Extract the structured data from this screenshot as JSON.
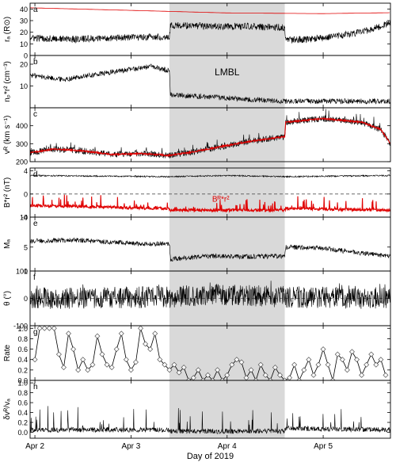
{
  "figure": {
    "xlabel": "Day of 2019",
    "shade_label": "LMBL",
    "x_ticks": [
      "Apr 2",
      "Apr 3",
      "Apr 4",
      "Apr 5"
    ],
    "x_tick_days": [
      2,
      3,
      4,
      5
    ],
    "x_range_days": [
      1.95,
      5.7
    ],
    "shaded_interval_days": [
      3.4,
      4.6
    ],
    "colors": {
      "black": "#000000",
      "red": "#e00000",
      "shade": "#d9d9d9",
      "dashed": "#555555"
    }
  },
  "chart_data": [
    {
      "type": "line",
      "panel_letter": "a",
      "ylabel": "rₐ (R⊙)",
      "ylim": [
        0,
        45
      ],
      "y_ticks": [
        0,
        10,
        20,
        30,
        40
      ],
      "series": [
        {
          "color": "#e00000",
          "points": [
            [
              1.95,
              41.0
            ],
            [
              3.0,
              38.8
            ],
            [
              4.0,
              36.6
            ],
            [
              5.0,
              36.0
            ],
            [
              5.7,
              36.8
            ]
          ]
        },
        {
          "color": "#000000",
          "profile": [
            [
              1.95,
              15
            ],
            [
              2.4,
              14
            ],
            [
              2.8,
              15
            ],
            [
              3.2,
              16
            ],
            [
              3.4,
              16
            ],
            [
              3.41,
              26
            ],
            [
              3.8,
              25
            ],
            [
              4.2,
              25
            ],
            [
              4.6,
              24
            ],
            [
              4.61,
              13
            ],
            [
              5.0,
              15
            ],
            [
              5.4,
              20
            ],
            [
              5.7,
              28
            ]
          ],
          "noise": 3.0,
          "spike": 0
        }
      ]
    },
    {
      "type": "line",
      "panel_letter": "b",
      "ylabel": "nₚ*r² (cm⁻³)",
      "ylim": [
        0,
        24
      ],
      "y_ticks": [
        10,
        20
      ],
      "annotation": "LMBL",
      "series": [
        {
          "color": "#000000",
          "profile": [
            [
              1.95,
              15
            ],
            [
              2.3,
              13
            ],
            [
              2.6,
              15
            ],
            [
              2.9,
              17
            ],
            [
              3.2,
              19
            ],
            [
              3.4,
              17
            ],
            [
              3.41,
              6
            ],
            [
              3.8,
              5
            ],
            [
              4.2,
              4
            ],
            [
              4.6,
              3
            ],
            [
              4.61,
              3
            ],
            [
              5.2,
              3
            ],
            [
              5.7,
              3
            ]
          ],
          "noise": 1.2,
          "spike": 0
        }
      ]
    },
    {
      "type": "line",
      "panel_letter": "c",
      "ylabel": "vᴿ (km s⁻¹)",
      "ylim": [
        200,
        500
      ],
      "y_ticks": [
        200,
        300,
        400
      ],
      "series": [
        {
          "color": "#000000",
          "profile": [
            [
              1.95,
              250
            ],
            [
              2.2,
              270
            ],
            [
              2.5,
              260
            ],
            [
              2.8,
              240
            ],
            [
              3.1,
              245
            ],
            [
              3.4,
              235
            ],
            [
              3.6,
              250
            ],
            [
              3.9,
              280
            ],
            [
              4.2,
              310
            ],
            [
              4.6,
              340
            ],
            [
              4.61,
              420
            ],
            [
              5.0,
              440
            ],
            [
              5.4,
              420
            ],
            [
              5.6,
              380
            ],
            [
              5.7,
              300
            ]
          ],
          "noise": 18,
          "spike": 40
        },
        {
          "color": "#e00000",
          "profile": [
            [
              1.95,
              250
            ],
            [
              2.2,
              270
            ],
            [
              2.5,
              260
            ],
            [
              2.8,
              240
            ],
            [
              3.1,
              245
            ],
            [
              3.4,
              235
            ],
            [
              3.6,
              250
            ],
            [
              3.9,
              280
            ],
            [
              4.2,
              310
            ],
            [
              4.6,
              340
            ],
            [
              4.61,
              420
            ],
            [
              5.0,
              440
            ],
            [
              5.4,
              420
            ],
            [
              5.6,
              380
            ],
            [
              5.7,
              300
            ]
          ],
          "noise": 4,
          "spike": 0
        }
      ]
    },
    {
      "type": "line",
      "panel_letter": "d",
      "ylabel": "B*r² (nT)",
      "ylim": [
        -4,
        4.5
      ],
      "y_ticks": [
        -4,
        0,
        4
      ],
      "dashed_y": 0,
      "annotation": "Bᴿ*r²",
      "series": [
        {
          "color": "#000000",
          "profile": [
            [
              1.95,
              3.2
            ],
            [
              3.4,
              3.0
            ],
            [
              4.0,
              3.2
            ],
            [
              4.6,
              3.0
            ],
            [
              5.7,
              3.2
            ]
          ],
          "noise": 0.12,
          "spike": 0
        },
        {
          "color": "#e00000",
          "profile": [
            [
              1.95,
              -2.0
            ],
            [
              3.4,
              -2.5
            ],
            [
              3.41,
              -2.8
            ],
            [
              4.6,
              -2.8
            ],
            [
              4.61,
              -2.5
            ],
            [
              5.7,
              -2.8
            ]
          ],
          "noise": 0.25,
          "spike": 2.2
        }
      ]
    },
    {
      "type": "line",
      "panel_letter": "e",
      "ylabel": "Mₐ",
      "ylim": [
        1,
        10
      ],
      "y_ticks": [
        1,
        5,
        10
      ],
      "series": [
        {
          "color": "#000000",
          "profile": [
            [
              1.95,
              6.0
            ],
            [
              2.4,
              6.2
            ],
            [
              2.8,
              5.8
            ],
            [
              3.2,
              5.5
            ],
            [
              3.4,
              5.6
            ],
            [
              3.41,
              3.0
            ],
            [
              3.8,
              3.5
            ],
            [
              4.2,
              3.4
            ],
            [
              4.6,
              3.5
            ],
            [
              4.61,
              5.0
            ],
            [
              5.0,
              4.8
            ],
            [
              5.4,
              4.0
            ],
            [
              5.7,
              3.5
            ]
          ],
          "noise": 0.4,
          "spike": 0
        }
      ]
    },
    {
      "type": "line",
      "panel_letter": "f",
      "ylabel": "θ (°)",
      "ylim": [
        -100,
        100
      ],
      "y_ticks": [
        -100,
        0,
        100
      ],
      "dashed_y": 0,
      "series": [
        {
          "color": "#000000",
          "profile": [
            [
              1.95,
              0
            ],
            [
              3.4,
              5
            ],
            [
              4.0,
              15
            ],
            [
              4.6,
              5
            ],
            [
              5.7,
              0
            ]
          ],
          "noise": 40,
          "spike": 25
        }
      ]
    },
    {
      "type": "line",
      "panel_letter": "g",
      "ylabel": "Rate",
      "ylim": [
        0,
        1.05
      ],
      "y_ticks": [
        0.0,
        0.2,
        0.4,
        0.6,
        0.8,
        1.0
      ],
      "markers": "open-diamond",
      "series": [
        {
          "color": "#000000",
          "x": [
            2.0,
            2.05,
            2.1,
            2.15,
            2.2,
            2.25,
            2.3,
            2.35,
            2.4,
            2.45,
            2.5,
            2.55,
            2.6,
            2.65,
            2.7,
            2.75,
            2.8,
            2.85,
            2.9,
            2.95,
            3.0,
            3.05,
            3.1,
            3.15,
            3.2,
            3.25,
            3.3,
            3.35,
            3.4,
            3.45,
            3.5,
            3.55,
            3.6,
            3.65,
            3.7,
            3.75,
            3.8,
            3.85,
            3.9,
            3.95,
            4.0,
            4.05,
            4.1,
            4.15,
            4.2,
            4.25,
            4.3,
            4.35,
            4.4,
            4.45,
            4.5,
            4.55,
            4.6,
            4.65,
            4.7,
            4.75,
            4.8,
            4.85,
            4.9,
            4.95,
            5.0,
            5.05,
            5.1,
            5.15,
            5.2,
            5.25,
            5.3,
            5.35,
            5.4,
            5.45,
            5.5,
            5.55,
            5.6,
            5.65
          ],
          "values": [
            0.4,
            1.0,
            1.0,
            1.0,
            1.0,
            0.5,
            0.25,
            0.9,
            0.6,
            0.2,
            0.4,
            0.2,
            0.3,
            0.85,
            0.5,
            0.3,
            0.25,
            0.6,
            0.9,
            0.4,
            0.2,
            0.35,
            1.0,
            0.7,
            0.6,
            0.9,
            0.4,
            0.3,
            0.2,
            0.3,
            0.15,
            0.25,
            0.0,
            0.05,
            0.2,
            0.0,
            0.1,
            0.0,
            0.2,
            0.0,
            0.1,
            0.3,
            0.4,
            0.35,
            0.05,
            0.2,
            0.0,
            0.3,
            0.1,
            0.0,
            0.25,
            0.1,
            0.0,
            0.05,
            0.3,
            0.0,
            0.2,
            0.4,
            0.1,
            0.3,
            0.6,
            0.3,
            0.0,
            0.5,
            0.4,
            0.2,
            0.55,
            0.4,
            0.1,
            0.3,
            0.5,
            0.3,
            0.4,
            0.1
          ]
        }
      ]
    },
    {
      "type": "line",
      "panel_letter": "h",
      "ylabel": "δvᴿ/vₐ",
      "ylim": [
        -0.12,
        1.05
      ],
      "y_ticks": [
        0.0,
        0.2,
        0.4,
        0.6,
        0.8,
        1.0
      ],
      "series": [
        {
          "color": "#000000",
          "profile": [
            [
              1.95,
              0.05
            ],
            [
              3.4,
              0.05
            ],
            [
              3.41,
              0.02
            ],
            [
              4.6,
              0.02
            ],
            [
              4.61,
              0.08
            ],
            [
              5.7,
              0.05
            ]
          ],
          "noise": 0.05,
          "spike": 0.5
        }
      ]
    }
  ]
}
